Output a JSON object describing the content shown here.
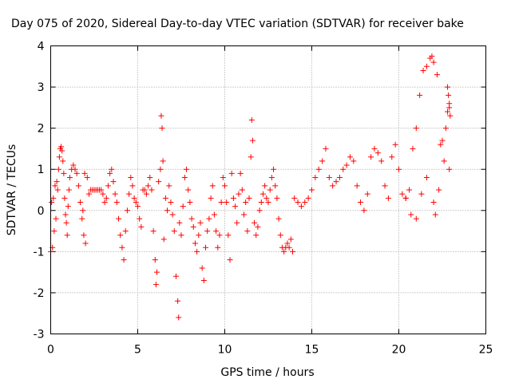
{
  "chart_data": {
    "type": "scatter",
    "title": "Day 075 of 2020, Sidereal Day-to-day VTEC variation (SDTVAR) for receiver bake",
    "xlabel": "GPS time / hours",
    "ylabel": "SDTVAR / TECUs",
    "xlim": [
      0,
      25
    ],
    "ylim": [
      -3,
      4
    ],
    "x_ticks": [
      0,
      5,
      10,
      15,
      20,
      25
    ],
    "x_tick_labels": [
      "0",
      "5",
      "10",
      "15",
      "20",
      "25"
    ],
    "y_ticks": [
      -3,
      -2,
      -1,
      0,
      1,
      2,
      3,
      4
    ],
    "y_tick_labels": [
      "-3",
      "-2",
      "-1",
      "0",
      "1",
      "2",
      "3",
      "4"
    ],
    "grid": true,
    "marker": "+",
    "color": "#ff0000",
    "series": [
      {
        "name": "SDTVAR",
        "points": [
          [
            0.0,
            -1.0
          ],
          [
            0.05,
            0.2
          ],
          [
            0.1,
            -0.9
          ],
          [
            0.15,
            0.3
          ],
          [
            0.2,
            -0.5
          ],
          [
            0.25,
            0.6
          ],
          [
            0.3,
            -0.2
          ],
          [
            0.35,
            0.7
          ],
          [
            0.4,
            0.5
          ],
          [
            0.45,
            1.0
          ],
          [
            0.5,
            1.3
          ],
          [
            0.55,
            1.5
          ],
          [
            0.6,
            1.55
          ],
          [
            0.65,
            1.45
          ],
          [
            0.7,
            1.2
          ],
          [
            0.75,
            0.9
          ],
          [
            0.8,
            0.3
          ],
          [
            0.85,
            -0.1
          ],
          [
            0.9,
            -0.3
          ],
          [
            0.95,
            -0.6
          ],
          [
            1.0,
            0.1
          ],
          [
            1.05,
            0.5
          ],
          [
            1.1,
            0.8
          ],
          [
            1.2,
            1.0
          ],
          [
            1.3,
            1.1
          ],
          [
            1.4,
            1.0
          ],
          [
            1.5,
            0.9
          ],
          [
            1.6,
            0.6
          ],
          [
            1.7,
            0.2
          ],
          [
            1.8,
            -0.2
          ],
          [
            1.9,
            -0.6
          ],
          [
            2.0,
            -0.8
          ],
          [
            1.85,
            0.0
          ],
          [
            1.95,
            0.9
          ],
          [
            2.1,
            0.8
          ],
          [
            2.2,
            0.4
          ],
          [
            2.3,
            0.5
          ],
          [
            2.4,
            0.5
          ],
          [
            2.5,
            0.5
          ],
          [
            2.6,
            0.5
          ],
          [
            2.7,
            0.5
          ],
          [
            2.8,
            0.5
          ],
          [
            2.9,
            0.5
          ],
          [
            3.0,
            0.4
          ],
          [
            3.1,
            0.2
          ],
          [
            3.2,
            0.3
          ],
          [
            3.3,
            0.6
          ],
          [
            3.4,
            0.9
          ],
          [
            3.5,
            1.0
          ],
          [
            3.6,
            0.7
          ],
          [
            3.7,
            0.4
          ],
          [
            3.8,
            0.2
          ],
          [
            3.9,
            -0.2
          ],
          [
            4.0,
            -0.6
          ],
          [
            4.1,
            -0.9
          ],
          [
            4.2,
            -1.2
          ],
          [
            4.3,
            -0.5
          ],
          [
            4.4,
            0.0
          ],
          [
            4.5,
            0.4
          ],
          [
            4.6,
            0.8
          ],
          [
            4.7,
            0.6
          ],
          [
            4.8,
            0.3
          ],
          [
            4.9,
            0.2
          ],
          [
            5.0,
            0.1
          ],
          [
            5.1,
            -0.2
          ],
          [
            5.2,
            -0.4
          ],
          [
            5.3,
            0.5
          ],
          [
            5.4,
            0.5
          ],
          [
            5.5,
            0.4
          ],
          [
            5.6,
            0.6
          ],
          [
            5.7,
            0.8
          ],
          [
            5.8,
            0.5
          ],
          [
            5.9,
            -0.5
          ],
          [
            6.0,
            -1.2
          ],
          [
            6.05,
            -1.8
          ],
          [
            6.1,
            -1.5
          ],
          [
            6.2,
            0.7
          ],
          [
            6.3,
            1.0
          ],
          [
            6.35,
            2.3
          ],
          [
            6.4,
            2.0
          ],
          [
            6.45,
            1.2
          ],
          [
            6.5,
            -0.7
          ],
          [
            6.6,
            0.3
          ],
          [
            6.7,
            0.0
          ],
          [
            6.8,
            0.6
          ],
          [
            6.9,
            0.2
          ],
          [
            7.0,
            -0.1
          ],
          [
            7.1,
            -0.5
          ],
          [
            7.2,
            -1.6
          ],
          [
            7.3,
            -2.2
          ],
          [
            7.35,
            -2.6
          ],
          [
            7.4,
            -0.3
          ],
          [
            7.5,
            -0.6
          ],
          [
            7.6,
            0.1
          ],
          [
            7.7,
            0.8
          ],
          [
            7.8,
            1.0
          ],
          [
            7.9,
            0.5
          ],
          [
            8.0,
            0.2
          ],
          [
            8.1,
            -0.2
          ],
          [
            8.2,
            -0.4
          ],
          [
            8.3,
            -0.8
          ],
          [
            8.4,
            -1.0
          ],
          [
            8.5,
            -0.6
          ],
          [
            8.6,
            -0.3
          ],
          [
            8.7,
            -1.4
          ],
          [
            8.8,
            -1.7
          ],
          [
            8.9,
            -0.9
          ],
          [
            9.0,
            -0.5
          ],
          [
            9.1,
            -0.2
          ],
          [
            9.2,
            0.3
          ],
          [
            9.3,
            0.6
          ],
          [
            9.4,
            -0.1
          ],
          [
            9.5,
            -0.5
          ],
          [
            9.6,
            -0.9
          ],
          [
            9.7,
            -0.6
          ],
          [
            9.8,
            0.2
          ],
          [
            9.9,
            0.8
          ],
          [
            10.0,
            0.6
          ],
          [
            10.1,
            0.2
          ],
          [
            10.2,
            -0.6
          ],
          [
            10.3,
            -1.2
          ],
          [
            10.4,
            0.9
          ],
          [
            10.5,
            0.3
          ],
          [
            10.6,
            0.1
          ],
          [
            10.7,
            -0.3
          ],
          [
            10.8,
            0.4
          ],
          [
            10.9,
            0.9
          ],
          [
            11.0,
            0.5
          ],
          [
            11.1,
            -0.1
          ],
          [
            11.2,
            0.2
          ],
          [
            11.3,
            -0.5
          ],
          [
            11.4,
            0.3
          ],
          [
            11.5,
            1.3
          ],
          [
            11.55,
            2.2
          ],
          [
            11.6,
            1.7
          ],
          [
            11.7,
            -0.3
          ],
          [
            11.8,
            -0.6
          ],
          [
            11.9,
            -0.4
          ],
          [
            12.0,
            0.0
          ],
          [
            12.1,
            0.2
          ],
          [
            12.2,
            0.4
          ],
          [
            12.3,
            0.6
          ],
          [
            12.4,
            0.3
          ],
          [
            12.5,
            0.2
          ],
          [
            12.6,
            0.5
          ],
          [
            12.7,
            0.8
          ],
          [
            12.8,
            1.0
          ],
          [
            12.9,
            0.6
          ],
          [
            13.0,
            0.3
          ],
          [
            13.1,
            -0.2
          ],
          [
            13.2,
            -0.6
          ],
          [
            13.3,
            -0.9
          ],
          [
            13.4,
            -1.0
          ],
          [
            13.5,
            -0.9
          ],
          [
            13.6,
            -0.8
          ],
          [
            13.7,
            -0.9
          ],
          [
            13.8,
            -0.7
          ],
          [
            13.9,
            -1.0
          ],
          [
            14.0,
            0.3
          ],
          [
            14.2,
            0.2
          ],
          [
            14.4,
            0.1
          ],
          [
            14.6,
            0.2
          ],
          [
            14.8,
            0.3
          ],
          [
            15.0,
            0.5
          ],
          [
            15.2,
            0.8
          ],
          [
            15.4,
            1.0
          ],
          [
            15.6,
            1.2
          ],
          [
            15.8,
            1.5
          ],
          [
            16.0,
            0.8
          ],
          [
            16.2,
            0.6
          ],
          [
            16.4,
            0.7
          ],
          [
            16.6,
            0.8
          ],
          [
            16.8,
            1.0
          ],
          [
            17.0,
            1.1
          ],
          [
            17.2,
            1.3
          ],
          [
            17.4,
            1.2
          ],
          [
            17.6,
            0.6
          ],
          [
            17.8,
            0.2
          ],
          [
            18.0,
            0.0
          ],
          [
            18.2,
            0.4
          ],
          [
            18.4,
            1.3
          ],
          [
            18.6,
            1.5
          ],
          [
            18.8,
            1.4
          ],
          [
            19.0,
            1.2
          ],
          [
            19.2,
            0.6
          ],
          [
            19.4,
            0.3
          ],
          [
            19.6,
            1.3
          ],
          [
            19.8,
            1.6
          ],
          [
            20.0,
            1.0
          ],
          [
            20.2,
            0.4
          ],
          [
            20.4,
            0.3
          ],
          [
            20.6,
            0.5
          ],
          [
            20.8,
            1.5
          ],
          [
            21.0,
            2.0
          ],
          [
            21.2,
            2.8
          ],
          [
            21.4,
            3.4
          ],
          [
            21.6,
            3.5
          ],
          [
            21.8,
            3.7
          ],
          [
            21.9,
            3.75
          ],
          [
            22.0,
            3.6
          ],
          [
            22.2,
            3.3
          ],
          [
            22.4,
            1.6
          ],
          [
            22.6,
            1.2
          ],
          [
            22.8,
            2.4
          ],
          [
            22.9,
            2.6
          ],
          [
            22.95,
            2.3
          ],
          [
            20.4,
            0.3
          ],
          [
            20.7,
            -0.1
          ],
          [
            21.0,
            -0.2
          ],
          [
            21.3,
            0.4
          ],
          [
            21.6,
            0.8
          ],
          [
            22.0,
            0.2
          ],
          [
            22.1,
            -0.1
          ],
          [
            22.3,
            0.5
          ],
          [
            22.5,
            1.7
          ],
          [
            22.7,
            2.0
          ],
          [
            22.8,
            3.0
          ],
          [
            22.85,
            2.8
          ],
          [
            22.9,
            2.5
          ],
          [
            22.9,
            1.0
          ]
        ]
      }
    ]
  }
}
